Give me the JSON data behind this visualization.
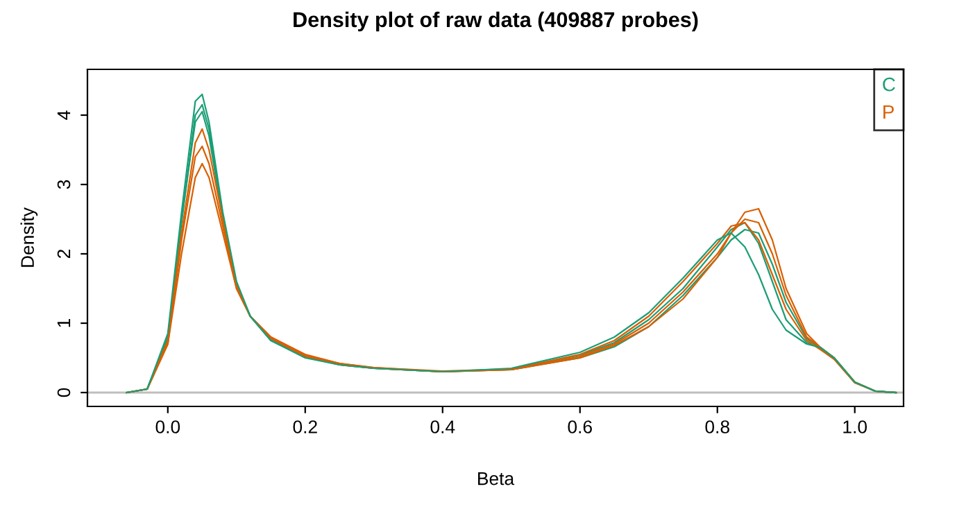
{
  "chart_data": {
    "type": "line",
    "title": "Density plot of raw data (409887 probes)",
    "xlabel": "Beta",
    "ylabel": "Density",
    "x": [
      -0.06,
      -0.03,
      0,
      0.02,
      0.04,
      0.05,
      0.06,
      0.08,
      0.1,
      0.12,
      0.15,
      0.2,
      0.25,
      0.3,
      0.4,
      0.5,
      0.6,
      0.65,
      0.7,
      0.75,
      0.8,
      0.82,
      0.84,
      0.86,
      0.88,
      0.9,
      0.93,
      0.95,
      0.97,
      1.0,
      1.03,
      1.06
    ],
    "series": [
      {
        "name": "C",
        "color": "#1b9e77",
        "values": [
          0,
          0.05,
          0.85,
          2.6,
          4.2,
          4.3,
          3.9,
          2.6,
          1.6,
          1.1,
          0.75,
          0.5,
          0.4,
          0.35,
          0.3,
          0.35,
          0.58,
          0.8,
          1.15,
          1.65,
          2.2,
          2.3,
          2.1,
          1.7,
          1.2,
          0.9,
          0.7,
          0.65,
          0.5,
          0.15,
          0.02,
          0
        ]
      },
      {
        "name": "P",
        "color": "#d95f02",
        "values": [
          0,
          0.05,
          0.7,
          2.0,
          3.1,
          3.3,
          3.1,
          2.3,
          1.5,
          1.1,
          0.8,
          0.55,
          0.42,
          0.36,
          0.3,
          0.33,
          0.5,
          0.68,
          0.95,
          1.35,
          1.95,
          2.3,
          2.6,
          2.65,
          2.2,
          1.5,
          0.85,
          0.65,
          0.5,
          0.15,
          0.02,
          0
        ]
      },
      {
        "color": "#d95f02",
        "values": [
          0,
          0.05,
          0.75,
          2.3,
          3.6,
          3.8,
          3.5,
          2.5,
          1.55,
          1.1,
          0.78,
          0.52,
          0.4,
          0.35,
          0.3,
          0.33,
          0.52,
          0.7,
          1.0,
          1.45,
          2.0,
          2.3,
          2.5,
          2.45,
          2.0,
          1.4,
          0.8,
          0.65,
          0.5,
          0.15,
          0.02,
          0
        ]
      },
      {
        "color": "#d95f02",
        "values": [
          0,
          0.05,
          0.7,
          2.2,
          3.4,
          3.55,
          3.3,
          2.4,
          1.5,
          1.1,
          0.8,
          0.54,
          0.42,
          0.36,
          0.31,
          0.34,
          0.55,
          0.75,
          1.1,
          1.6,
          2.15,
          2.4,
          2.45,
          2.2,
          1.7,
          1.2,
          0.75,
          0.62,
          0.48,
          0.14,
          0.02,
          0
        ]
      },
      {
        "color": "#1b9e77",
        "values": [
          0,
          0.05,
          0.8,
          2.5,
          3.9,
          4.05,
          3.7,
          2.5,
          1.55,
          1.1,
          0.76,
          0.52,
          0.41,
          0.35,
          0.3,
          0.34,
          0.54,
          0.72,
          1.05,
          1.5,
          2.1,
          2.35,
          2.45,
          2.15,
          1.6,
          1.05,
          0.72,
          0.64,
          0.5,
          0.15,
          0.02,
          0
        ]
      },
      {
        "color": "#1b9e77",
        "values": [
          0,
          0.05,
          0.8,
          2.45,
          4.0,
          4.15,
          3.8,
          2.55,
          1.58,
          1.1,
          0.75,
          0.51,
          0.4,
          0.35,
          0.3,
          0.33,
          0.5,
          0.66,
          0.95,
          1.4,
          1.95,
          2.2,
          2.35,
          2.3,
          1.85,
          1.3,
          0.78,
          0.64,
          0.5,
          0.15,
          0.02,
          0
        ]
      }
    ],
    "xlim": [
      -0.117,
      1.071
    ],
    "ylim": [
      -0.2,
      4.66
    ],
    "xticks": [
      {
        "value": 0,
        "label": "0.0"
      },
      0.2,
      0.4,
      0.6,
      0.8,
      {
        "value": 1,
        "label": "1.0"
      }
    ],
    "yticks": [
      0,
      1,
      2,
      3,
      4
    ],
    "ref_lines": [
      {
        "axis": "y",
        "value": 0,
        "color": "#bebebe"
      }
    ],
    "grid": false,
    "legend": "top right",
    "line_style": "solid",
    "marker": "none"
  }
}
